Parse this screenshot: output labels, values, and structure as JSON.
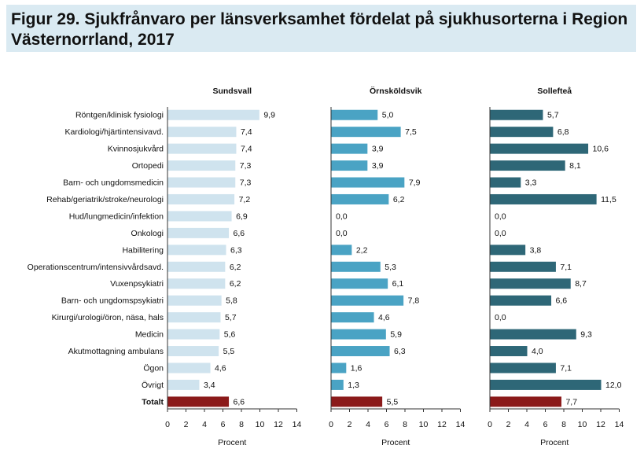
{
  "title": {
    "line1": "Figur 29. Sjukfrånvaro per länsverksamhet fördelat på sjukhusorterna i Region",
    "line2": "Västernorrland, 2017"
  },
  "chart_data": {
    "type": "bar",
    "orientation": "horizontal",
    "categories": [
      "Röntgen/klinisk fysiologi",
      "Kardiologi/hjärtintensivavd.",
      "Kvinnosjukvård",
      "Ortopedi",
      "Barn- och ungdomsmedicin",
      "Rehab/geriatrik/stroke/neurologi",
      "Hud/lungmedicin/infektion",
      "Onkologi",
      "Habilitering",
      "Operationscentrum/intensivvårdsavd.",
      "Vuxenpsykiatri",
      "Barn- och ungdomspsykiatri",
      "Kirurgi/urologi/öron, näsa, hals",
      "Medicin",
      "Akutmottagning ambulans",
      "Ögon",
      "Övrigt",
      "Totalt"
    ],
    "xlabel": "Procent",
    "xlim": [
      0,
      14
    ],
    "xticks": [
      "0",
      "2",
      "4",
      "6",
      "8",
      "10",
      "12",
      "14"
    ],
    "total_color": "#8b1a1a",
    "panels": [
      {
        "name": "Sundsvall",
        "color": "#cfe3ee",
        "values": [
          9.9,
          7.4,
          7.4,
          7.3,
          7.3,
          7.2,
          6.9,
          6.6,
          6.3,
          6.2,
          6.2,
          5.8,
          5.7,
          5.6,
          5.5,
          4.6,
          3.4,
          6.6
        ],
        "labels": [
          "9,9",
          "7,4",
          "7,4",
          "7,3",
          "7,3",
          "7,2",
          "6,9",
          "6,6",
          "6,3",
          "6,2",
          "6,2",
          "5,8",
          "5,7",
          "5,6",
          "5,5",
          "4,6",
          "3,4",
          "6,6"
        ]
      },
      {
        "name": "Örnsköldsvik",
        "color": "#4aa3c4",
        "values": [
          5.0,
          7.5,
          3.9,
          3.9,
          7.9,
          6.2,
          0.0,
          0.0,
          2.2,
          5.3,
          6.1,
          7.8,
          4.6,
          5.9,
          6.3,
          1.6,
          1.3,
          5.5
        ],
        "labels": [
          "5,0",
          "7,5",
          "3,9",
          "3,9",
          "7,9",
          "6,2",
          "0,0",
          "0,0",
          "2,2",
          "5,3",
          "6,1",
          "7,8",
          "4,6",
          "5,9",
          "6,3",
          "1,6",
          "1,3",
          "5,5"
        ]
      },
      {
        "name": "Sollefteå",
        "color": "#2e6777",
        "values": [
          5.7,
          6.8,
          10.6,
          8.1,
          3.3,
          11.5,
          0.0,
          0.0,
          3.8,
          7.1,
          8.7,
          6.6,
          0.0,
          9.3,
          4.0,
          7.1,
          12.0,
          7.7
        ],
        "labels": [
          "5,7",
          "6,8",
          "10,6",
          "8,1",
          "3,3",
          "11,5",
          "0,0",
          "0,0",
          "3,8",
          "7,1",
          "8,7",
          "6,6",
          "0,0",
          "9,3",
          "4,0",
          "7,1",
          "12,0",
          "7,7"
        ]
      }
    ]
  }
}
